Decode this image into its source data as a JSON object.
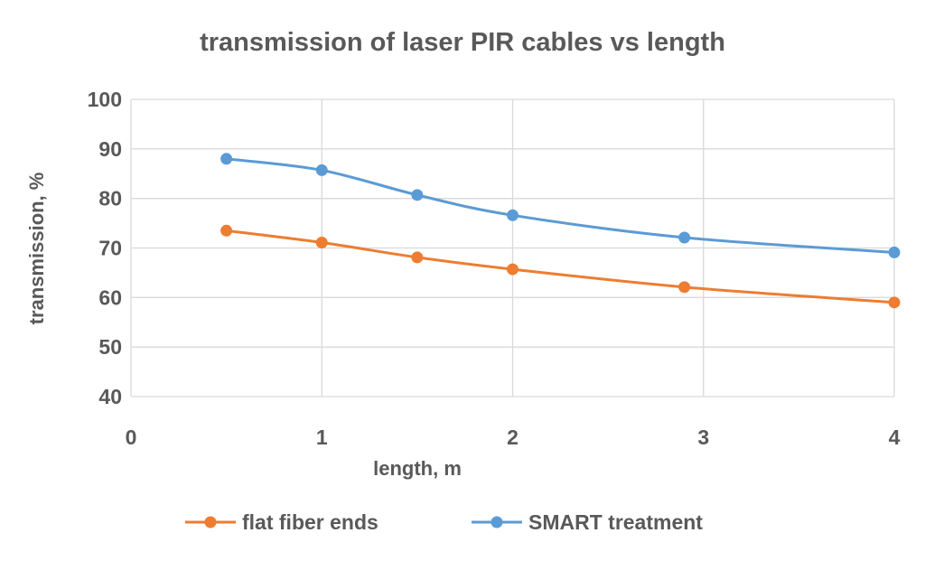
{
  "chart_data": {
    "type": "line",
    "title": "transmission of laser PIR cables vs length",
    "xlabel": "length, m",
    "ylabel": "transmission,  %",
    "xlim": [
      0,
      4
    ],
    "ylim": [
      40,
      100
    ],
    "xticks": [
      0,
      1,
      2,
      3,
      4
    ],
    "yticks": [
      40,
      50,
      60,
      70,
      80,
      90,
      100
    ],
    "grid": true,
    "smoothed": true,
    "legend_position": "bottom",
    "series": [
      {
        "name": "flat fiber ends",
        "color": "#ED7D31",
        "x": [
          0.5,
          1,
          1.5,
          2,
          2.9,
          4
        ],
        "y": [
          73.5,
          71.1,
          68.1,
          65.7,
          62.1,
          59
        ]
      },
      {
        "name": "SMART treatment",
        "color": "#5B9BD5",
        "x": [
          0.5,
          1,
          1.5,
          2,
          2.9,
          4
        ],
        "y": [
          88,
          85.7,
          80.7,
          76.6,
          72.1,
          69.1
        ]
      }
    ]
  }
}
